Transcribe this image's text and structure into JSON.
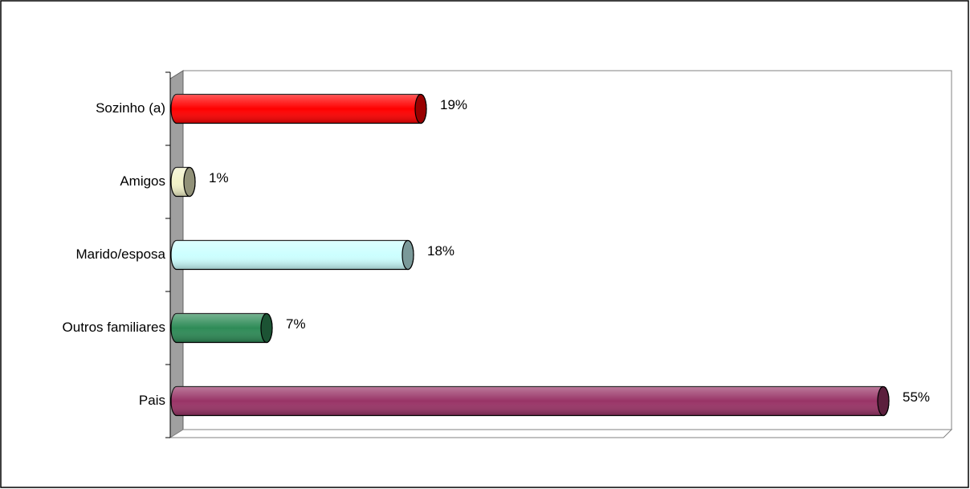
{
  "chart_data": {
    "type": "bar",
    "orientation": "horizontal",
    "categories": [
      "Sozinho (a)",
      "Amigos",
      "Marido/esposa",
      "Outros familiares",
      "Pais"
    ],
    "values": [
      19,
      1,
      18,
      7,
      55
    ],
    "value_labels": [
      "19%",
      "1%",
      "18%",
      "7%",
      "55%"
    ],
    "colors": [
      "#ff0000",
      "#f2f2c8",
      "#ccffff",
      "#2e8b57",
      "#993366"
    ],
    "xlim": [
      0,
      60
    ]
  }
}
